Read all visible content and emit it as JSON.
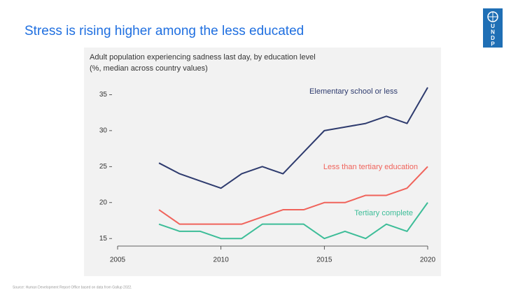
{
  "header": {
    "title": "Stress is rising higher among the less educated",
    "logo_letters": [
      "U",
      "N",
      "D",
      "P"
    ]
  },
  "chart_data": {
    "type": "line",
    "title": "Adult population experiencing sadness last day, by education level",
    "subtitle": "(%, median across country values)",
    "x": [
      2007,
      2008,
      2009,
      2010,
      2011,
      2012,
      2013,
      2014,
      2015,
      2016,
      2017,
      2018,
      2019,
      2020
    ],
    "series": [
      {
        "name": "Elementary school or less",
        "color": "#2e3b6e",
        "values": [
          25.5,
          24,
          23,
          22,
          24,
          25,
          24,
          27,
          30,
          30.5,
          31,
          32,
          31,
          36
        ]
      },
      {
        "name": "Less than tertiary education",
        "color": "#f0635b",
        "values": [
          19,
          17,
          17,
          17,
          17,
          18,
          19,
          19,
          20,
          20,
          21,
          21,
          22,
          25
        ]
      },
      {
        "name": "Tertiary complete",
        "color": "#3dbd98",
        "values": [
          17,
          16,
          16,
          15,
          15,
          17,
          17,
          17,
          15,
          16,
          15,
          17,
          16,
          20
        ]
      }
    ],
    "xlim": [
      2005,
      2020
    ],
    "xticks": [
      2005,
      2010,
      2015,
      2020
    ],
    "ylim": [
      14,
      36.5
    ],
    "yticks": [
      15,
      20,
      25,
      30,
      35
    ],
    "grid": false
  },
  "footer": {
    "source": "Source: Human Development Report Office based on data from Gallup 2022."
  }
}
